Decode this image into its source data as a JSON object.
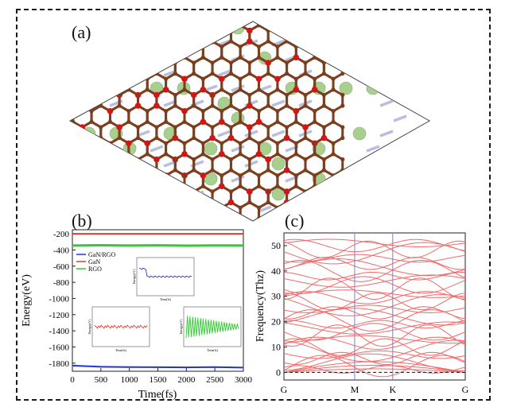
{
  "figure": {
    "panel_labels": {
      "a": "(a)",
      "b": "(b)",
      "c": "(c)"
    }
  },
  "colors": {
    "carbon": "#7a3f1e",
    "oxygen": "#d41515",
    "nitrogen": "#b9bedc",
    "gallium": "#a9cf8f",
    "gan_rgo": "#2233dd",
    "gan": "#e03a2a",
    "rgo": "#2ecc2e",
    "phonon": "#f06a6a",
    "kpath_line": "#7a7aee"
  },
  "chart_data": [
    {
      "type": "line",
      "panel": "b",
      "xlabel": "Time(fs)",
      "ylabel": "Energy(eV)",
      "xlim": [
        0,
        3000
      ],
      "ylim": [
        -1900,
        -150
      ],
      "xticks": [
        0,
        500,
        1000,
        1500,
        2000,
        2500,
        3000
      ],
      "yticks": [
        -200,
        -400,
        -600,
        -800,
        -1000,
        -1200,
        -1400,
        -1600,
        -1800
      ],
      "legend": [
        "GaN/RGO",
        "GaN",
        "RGO"
      ],
      "legend_position": "top-left",
      "series": [
        {
          "name": "GaN/RGO",
          "x": [
            0,
            500,
            1000,
            1500,
            2000,
            2500,
            3000
          ],
          "values": [
            -1830,
            -1845,
            -1848,
            -1850,
            -1852,
            -1848,
            -1855
          ]
        },
        {
          "name": "GaN",
          "x": [
            0,
            500,
            1000,
            1500,
            2000,
            2500,
            3000
          ],
          "values": [
            -200,
            -200,
            -200,
            -200,
            -200,
            -200,
            -200
          ]
        },
        {
          "name": "RGO",
          "x": [
            0,
            500,
            1000,
            1500,
            2000,
            2500,
            3000
          ],
          "values": [
            -345,
            -342,
            -346,
            -343,
            -347,
            -344,
            -346
          ]
        }
      ],
      "insets": [
        {
          "name": "GaN/RGO inset",
          "xlabel": "Time(fs)",
          "ylabel": "Energy(eV)"
        },
        {
          "name": "GaN inset",
          "xlabel": "Time(fs)",
          "ylabel": "Energy(eV)"
        },
        {
          "name": "RGO inset",
          "xlabel": "Time(fs)",
          "ylabel": "Energy(eV)"
        }
      ]
    },
    {
      "type": "line",
      "panel": "c",
      "title": "",
      "xlabel": "",
      "ylabel": "Frequency(Thz)",
      "ylim": [
        -3,
        55
      ],
      "yticks": [
        0,
        10,
        20,
        30,
        40,
        50
      ],
      "kpoints": [
        "G",
        "M",
        "K",
        "G"
      ],
      "kpath_positions": [
        0,
        0.39,
        0.6,
        1.0
      ],
      "band_levels": [
        51,
        50,
        48.5,
        47,
        45,
        43,
        41.5,
        40,
        38,
        36,
        34.5,
        33,
        31,
        29.5,
        28,
        26.5,
        25,
        23.5,
        22,
        20.5,
        19,
        17.5,
        16,
        14.5,
        13,
        11.5,
        10,
        8.5,
        7,
        5.5,
        4,
        2.5,
        1.2
      ],
      "zero_line": 0
    }
  ]
}
